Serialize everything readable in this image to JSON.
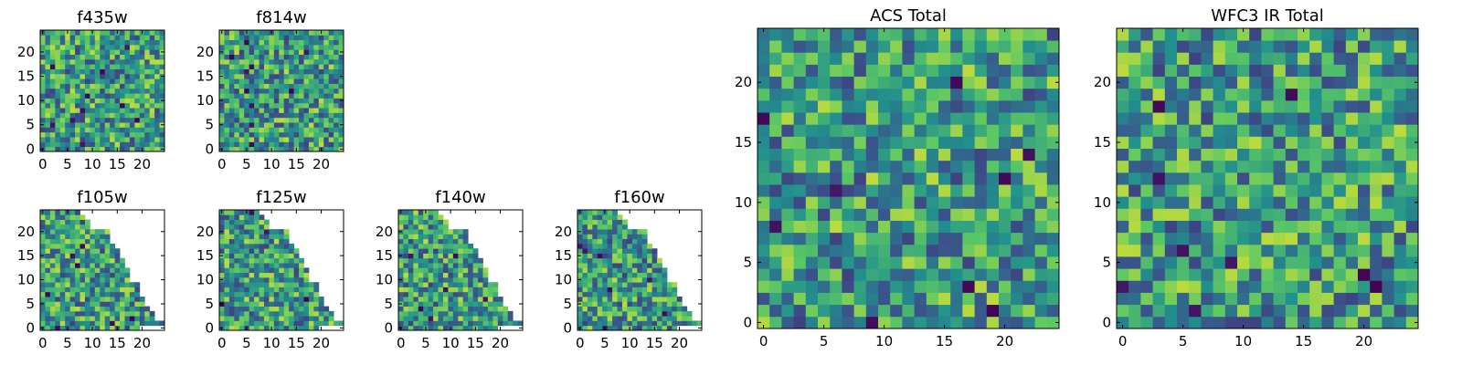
{
  "figure": {
    "colormap": [
      "#440154",
      "#3b528b",
      "#21908d",
      "#5dc863",
      "#fde725"
    ],
    "background": "#ffffff"
  },
  "chart_data": [
    {
      "type": "heatmap",
      "title": "f435w",
      "grid": false,
      "xlim": [
        -0.5,
        24.5
      ],
      "ylim": [
        -0.5,
        24.5
      ],
      "xticks": [
        0,
        5,
        10,
        15,
        20
      ],
      "yticks": [
        0,
        5,
        10,
        15,
        20
      ],
      "size": 25,
      "mask": "none",
      "seed": 11,
      "dark_count": 10
    },
    {
      "type": "heatmap",
      "title": "f814w",
      "grid": false,
      "xlim": [
        -0.5,
        24.5
      ],
      "ylim": [
        -0.5,
        24.5
      ],
      "xticks": [
        0,
        5,
        10,
        15,
        20
      ],
      "yticks": [
        0,
        5,
        10,
        15,
        20
      ],
      "size": 25,
      "mask": "none",
      "seed": 23,
      "dark_count": 10
    },
    {
      "type": "heatmap",
      "title": "f105w",
      "grid": false,
      "xlim": [
        -0.5,
        24.5
      ],
      "ylim": [
        -0.5,
        24.5
      ],
      "xticks": [
        0,
        5,
        10,
        15,
        20
      ],
      "yticks": [
        0,
        5,
        10,
        15,
        20
      ],
      "size": 25,
      "mask": "triangle",
      "seed": 37,
      "dark_count": 7
    },
    {
      "type": "heatmap",
      "title": "f125w",
      "grid": false,
      "xlim": [
        -0.5,
        24.5
      ],
      "ylim": [
        -0.5,
        24.5
      ],
      "xticks": [
        0,
        5,
        10,
        15,
        20
      ],
      "yticks": [
        0,
        5,
        10,
        15,
        20
      ],
      "size": 25,
      "mask": "triangle",
      "seed": 41,
      "dark_count": 7
    },
    {
      "type": "heatmap",
      "title": "f140w",
      "grid": false,
      "xlim": [
        -0.5,
        24.5
      ],
      "ylim": [
        -0.5,
        24.5
      ],
      "xticks": [
        0,
        5,
        10,
        15,
        20
      ],
      "yticks": [
        0,
        5,
        10,
        15,
        20
      ],
      "size": 25,
      "mask": "triangle",
      "seed": 53,
      "dark_count": 7
    },
    {
      "type": "heatmap",
      "title": "f160w",
      "grid": false,
      "xlim": [
        -0.5,
        24.5
      ],
      "ylim": [
        -0.5,
        24.5
      ],
      "xticks": [
        0,
        5,
        10,
        15,
        20
      ],
      "yticks": [
        0,
        5,
        10,
        15,
        20
      ],
      "size": 25,
      "mask": "triangle",
      "seed": 67,
      "dark_count": 7
    },
    {
      "type": "heatmap",
      "title": "ACS Total",
      "grid": false,
      "xlim": [
        -0.5,
        24.5
      ],
      "ylim": [
        -0.5,
        24.5
      ],
      "xticks": [
        0,
        5,
        10,
        15,
        20
      ],
      "yticks": [
        0,
        5,
        10,
        15,
        20
      ],
      "size": 25,
      "mask": "none",
      "seed": 79,
      "dark_count": 9
    },
    {
      "type": "heatmap",
      "title": "WFC3 IR Total",
      "grid": false,
      "xlim": [
        -0.5,
        24.5
      ],
      "ylim": [
        -0.5,
        24.5
      ],
      "xticks": [
        0,
        5,
        10,
        15,
        20
      ],
      "yticks": [
        0,
        5,
        10,
        15,
        20
      ],
      "size": 25,
      "mask": "none",
      "seed": 97,
      "dark_count": 9
    }
  ]
}
